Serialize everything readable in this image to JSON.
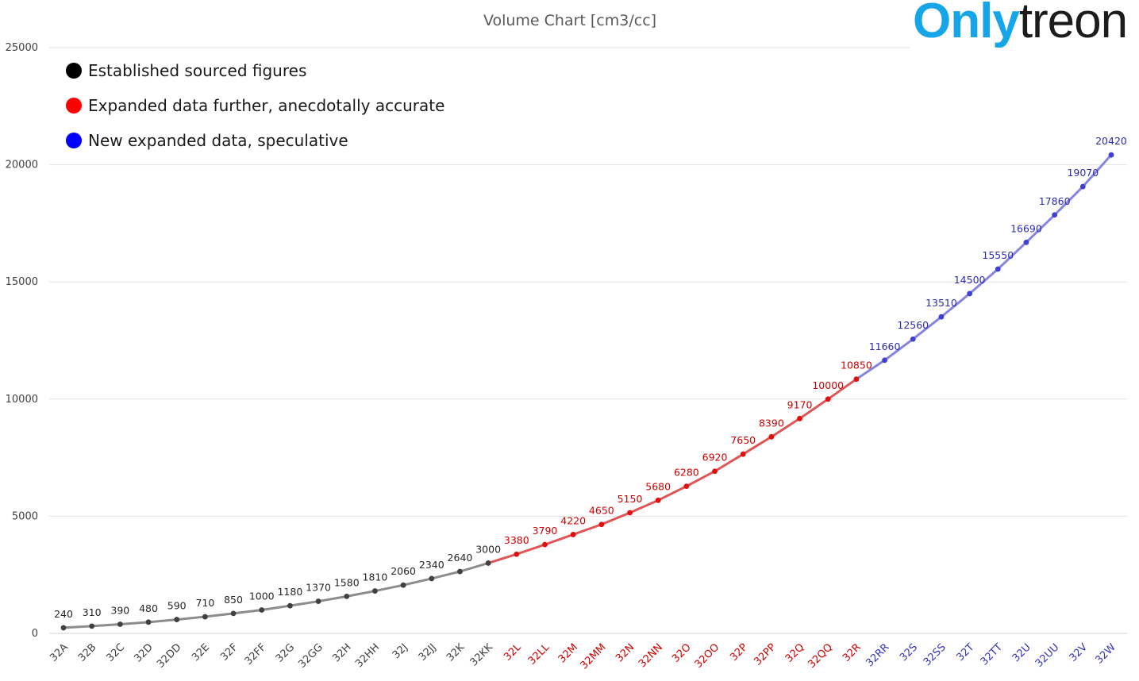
{
  "logo": {
    "part1": "Only",
    "part2": "treon"
  },
  "chart_data": {
    "type": "line",
    "title": "Volume Chart [cm3/cc]",
    "xlabel": "",
    "ylabel": "",
    "ylim": [
      0,
      25000
    ],
    "yticks": [
      0,
      5000,
      10000,
      15000,
      20000,
      25000
    ],
    "grid": true,
    "legend_position": "top-left",
    "categories": [
      "32A",
      "32B",
      "32C",
      "32D",
      "32DD",
      "32E",
      "32F",
      "32FF",
      "32G",
      "32GG",
      "32H",
      "32HH",
      "32J",
      "32JJ",
      "32K",
      "32KK",
      "32L",
      "32LL",
      "32M",
      "32MM",
      "32N",
      "32NN",
      "32O",
      "32OO",
      "32P",
      "32PP",
      "32Q",
      "32QQ",
      "32R",
      "32RR",
      "32S",
      "32SS",
      "32T",
      "32TT",
      "32U",
      "32UU",
      "32V",
      "32W"
    ],
    "values": [
      240,
      310,
      390,
      480,
      590,
      710,
      850,
      1000,
      1180,
      1370,
      1580,
      1810,
      2060,
      2340,
      2640,
      3000,
      3380,
      3790,
      4220,
      4650,
      5150,
      5680,
      6280,
      6920,
      7650,
      8390,
      9170,
      10000,
      10850,
      11660,
      12560,
      13510,
      14500,
      15550,
      16690,
      17860,
      19070,
      20420
    ],
    "segments": [
      {
        "name": "Established sourced figures",
        "start": 0,
        "end": 15,
        "marker_color": "#000000",
        "point_color": "#404040",
        "line_color": "#8c8c8c",
        "label_color": "#262626",
        "tick_color": "#404040"
      },
      {
        "name": "Expanded data further, anecdotally accurate",
        "start": 16,
        "end": 28,
        "marker_color": "#ff0000",
        "point_color": "#e01010",
        "line_color": "#e05555",
        "label_color": "#cc0000",
        "tick_color": "#cc0000"
      },
      {
        "name": "New expanded data, speculative",
        "start": 29,
        "end": 37,
        "marker_color": "#0000ff",
        "point_color": "#4040d0",
        "line_color": "#8585e0",
        "label_color": "#2b2bb3",
        "tick_color": "#3333bb"
      }
    ]
  }
}
